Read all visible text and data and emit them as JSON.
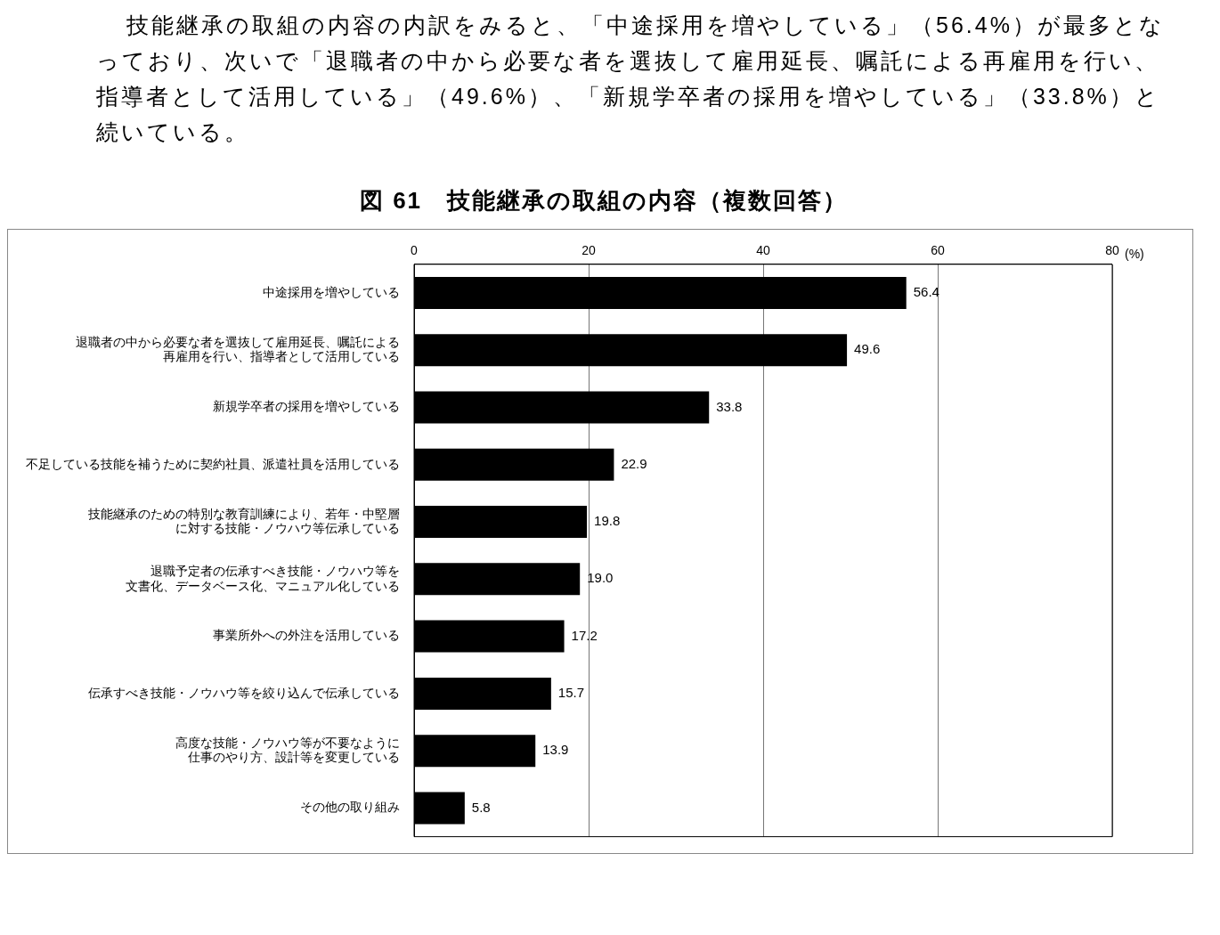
{
  "chart_data": {
    "type": "bar",
    "orientation": "horizontal",
    "title": "図 61　技能継承の取組の内容（複数回答）",
    "xlabel": "(%)",
    "annotations": [
      "技能継承の取組の内容の内訳をみると、「中途採用を増やしている」（56.4%）が最多となっており、次いで「退職者の中から必要な者を選抜して雇用延長、嘱託による再雇用を行い、指導者として活用している」（49.6%）、「新規学卒者の採用を増やしている」（33.8%）と続いている。"
    ],
    "categories": [
      "中途採用を増やしている",
      "退職者の中から必要な者を選抜して雇用延長、嘱託による再雇用を行い、指導者として活用している",
      "新規学卒者の採用を増やしている",
      "不足している技能を補うために契約社員、派遣社員を活用している",
      "技能継承のための特別な教育訓練により、若年・中堅層に対する技能・ノウハウ等伝承している",
      "退職予定者の伝承すべき技能・ノウハウ等を文書化、データベース化、マニュアル化している",
      "事業所外への外注を活用している",
      "伝承すべき技能・ノウハウ等を絞り込んで伝承している",
      "高度な技能・ノウハウ等が不要なように仕事のやり方、設計等を変更している",
      "その他の取り組み"
    ],
    "values": [
      56.4,
      49.6,
      33.8,
      22.9,
      19.8,
      19.0,
      17.2,
      15.7,
      13.9,
      5.8
    ],
    "value_labels": [
      "56.4",
      "49.6",
      "33.8",
      "22.9",
      "19.8",
      "19.0",
      "17.2",
      "15.7",
      "13.9",
      "5.8"
    ],
    "color": "#000000",
    "xlim": [
      0,
      80
    ],
    "xticks": [
      0,
      20,
      40,
      60,
      80
    ],
    "grid": "x",
    "legend": false
  }
}
